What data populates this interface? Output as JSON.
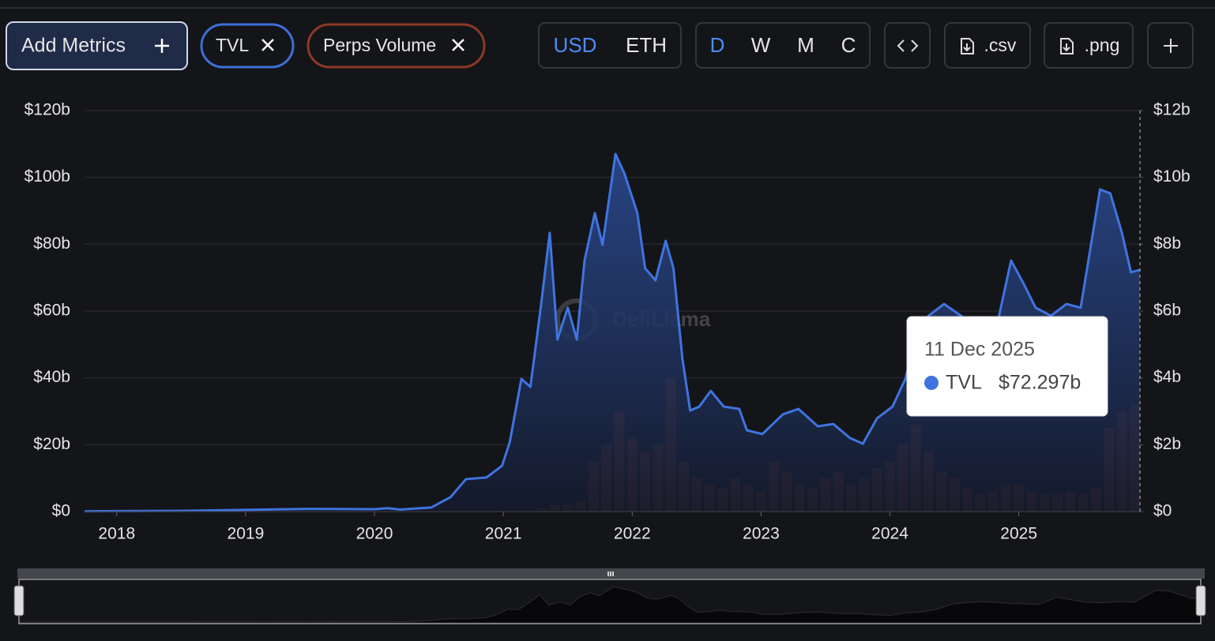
{
  "toolbar": {
    "add_metrics": "Add Metrics",
    "currencies": [
      "USD",
      "ETH"
    ],
    "intervals": [
      "D",
      "W",
      "M",
      "C"
    ],
    "exports": [
      ".csv",
      ".png"
    ]
  },
  "chart_data": {
    "type": "combo",
    "watermark": "DefiLlama",
    "xlim": [
      2017.75,
      2025.94
    ],
    "xticks": [
      2018,
      2019,
      2020,
      2021,
      2022,
      2023,
      2024,
      2025
    ],
    "ylim": [
      0,
      120
    ],
    "yticks": [
      {
        "value": 0,
        "label": "$0"
      },
      {
        "value": 20,
        "label": "$20b"
      },
      {
        "value": 40,
        "label": "$40b"
      },
      {
        "value": 60,
        "label": "$60b"
      },
      {
        "value": 80,
        "label": "$80b"
      },
      {
        "value": 100,
        "label": "$100b"
      },
      {
        "value": 120,
        "label": "$120b"
      }
    ],
    "y2lim": [
      0,
      12
    ],
    "y2ticks": [
      {
        "value": 0,
        "label": "$0"
      },
      {
        "value": 2,
        "label": "$2b"
      },
      {
        "value": 4,
        "label": "$4b"
      },
      {
        "value": 6,
        "label": "$6b"
      },
      {
        "value": 8,
        "label": "$8b"
      },
      {
        "value": 10,
        "label": "$10b"
      },
      {
        "value": 12,
        "label": "$12b"
      }
    ],
    "grid": true,
    "series": [
      {
        "name": "TVL",
        "type": "area",
        "color": "#3f74e0",
        "x": [
          2017.75,
          2018.5,
          2019.0,
          2019.5,
          2020.0,
          2020.1,
          2020.2,
          2020.44,
          2020.59,
          2020.71,
          2020.87,
          2020.99,
          2021.05,
          2021.14,
          2021.21,
          2021.29,
          2021.36,
          2021.42,
          2021.5,
          2021.57,
          2021.63,
          2021.71,
          2021.77,
          2021.87,
          2021.94,
          2022.04,
          2022.1,
          2022.18,
          2022.26,
          2022.32,
          2022.39,
          2022.45,
          2022.52,
          2022.61,
          2022.71,
          2022.83,
          2022.89,
          2023.01,
          2023.17,
          2023.29,
          2023.44,
          2023.56,
          2023.69,
          2023.79,
          2023.9,
          2024.02,
          2024.12,
          2024.21,
          2024.3,
          2024.42,
          2024.64,
          2024.82,
          2024.94,
          2025.04,
          2025.13,
          2025.25,
          2025.37,
          2025.48,
          2025.56,
          2025.63,
          2025.71,
          2025.8,
          2025.87,
          2025.94
        ],
        "values": [
          0.1,
          0.2,
          0.5,
          0.8,
          0.7,
          1.0,
          0.6,
          1.2,
          4.3,
          9.7,
          10.2,
          13.7,
          20.8,
          39.7,
          37.3,
          61,
          83.4,
          51.5,
          61,
          51.5,
          75.1,
          89.3,
          79.8,
          107,
          101.1,
          89.3,
          72.8,
          69.2,
          81,
          72.8,
          45.6,
          30.2,
          31.4,
          36.1,
          31.4,
          30.7,
          24.3,
          23.2,
          29.1,
          30.7,
          25.5,
          26.2,
          22,
          20.3,
          27.9,
          31.4,
          39.7,
          53.9,
          58.6,
          62.1,
          56.2,
          53.9,
          75.1,
          68,
          61,
          58.6,
          62.1,
          61,
          79.8,
          96.4,
          95.2,
          83.4,
          71.6,
          72.297
        ]
      },
      {
        "name": "Perps Volume",
        "type": "bar",
        "color": "#8b3d22",
        "axis": "y2",
        "x": [
          2021.3,
          2021.4,
          2021.5,
          2021.6,
          2021.7,
          2021.8,
          2021.9,
          2022.0,
          2022.1,
          2022.2,
          2022.3,
          2022.4,
          2022.5,
          2022.6,
          2022.7,
          2022.8,
          2022.9,
          2023.0,
          2023.1,
          2023.2,
          2023.3,
          2023.4,
          2023.5,
          2023.6,
          2023.7,
          2023.8,
          2023.9,
          2024.0,
          2024.1,
          2024.2,
          2024.3,
          2024.4,
          2024.5,
          2024.6,
          2024.7,
          2024.8,
          2024.9,
          2025.0,
          2025.1,
          2025.2,
          2025.3,
          2025.4,
          2025.5,
          2025.6,
          2025.7,
          2025.8,
          2025.9
        ],
        "values": [
          0.1,
          0.2,
          0.2,
          0.3,
          1.5,
          2.0,
          3.0,
          2.2,
          1.8,
          2.0,
          4.0,
          1.5,
          1.0,
          0.8,
          0.7,
          1.0,
          0.8,
          0.6,
          1.5,
          1.2,
          0.8,
          0.7,
          1.0,
          1.2,
          0.8,
          1.0,
          1.3,
          1.5,
          2.0,
          2.6,
          1.8,
          1.2,
          1.0,
          0.7,
          0.5,
          0.6,
          0.8,
          0.8,
          0.6,
          0.5,
          0.5,
          0.6,
          0.5,
          0.7,
          2.5,
          3.0,
          3.2
        ]
      }
    ],
    "tooltip": {
      "date": "11 Dec 2025",
      "value": 72.297,
      "value_label": "$72.297b"
    }
  }
}
